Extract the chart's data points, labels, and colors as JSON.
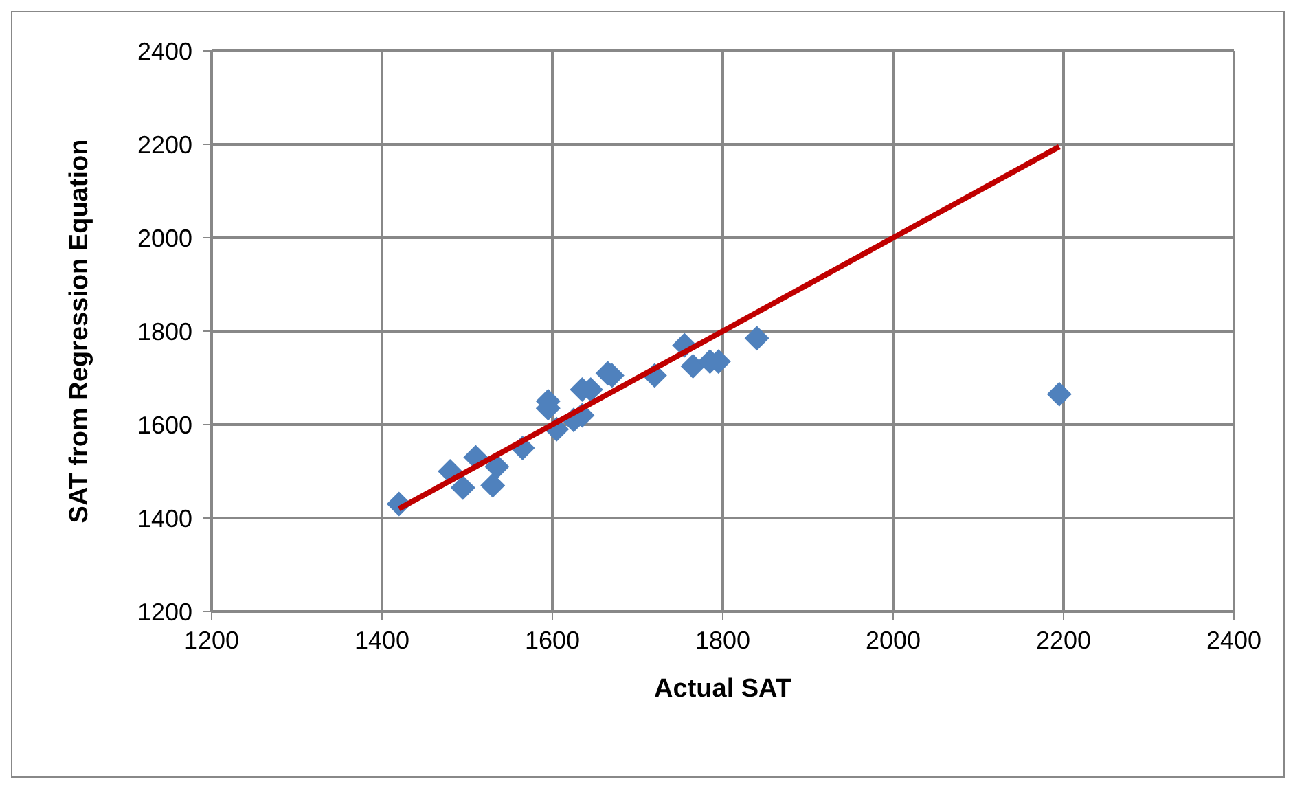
{
  "chart_data": {
    "type": "scatter",
    "xlabel": "Actual SAT",
    "ylabel": "SAT from Regression Equation",
    "xlim": [
      1200,
      2400
    ],
    "xticks": [
      1200,
      1400,
      1600,
      1800,
      2000,
      2200,
      2400
    ],
    "ylim": [
      1200,
      2400
    ],
    "yticks": [
      1200,
      1400,
      1600,
      1800,
      2000,
      2200,
      2400
    ],
    "grid": true,
    "series": [
      {
        "marker": "diamond",
        "color": "#4f81bd",
        "x": [
          1420,
          1480,
          1495,
          1510,
          1535,
          1530,
          1565,
          1595,
          1595,
          1605,
          1625,
          1635,
          1635,
          1645,
          1665,
          1670,
          1720,
          1755,
          1765,
          1785,
          1795,
          1840,
          2195
        ],
        "values": [
          1430,
          1500,
          1465,
          1530,
          1510,
          1470,
          1550,
          1650,
          1635,
          1590,
          1610,
          1620,
          1675,
          1675,
          1710,
          1705,
          1705,
          1770,
          1725,
          1735,
          1735,
          1785,
          1665
        ]
      },
      {
        "type": "line",
        "marker": "none",
        "color": "#c00000",
        "x": [
          1420,
          2195
        ],
        "values": [
          1420,
          2195
        ]
      }
    ]
  }
}
